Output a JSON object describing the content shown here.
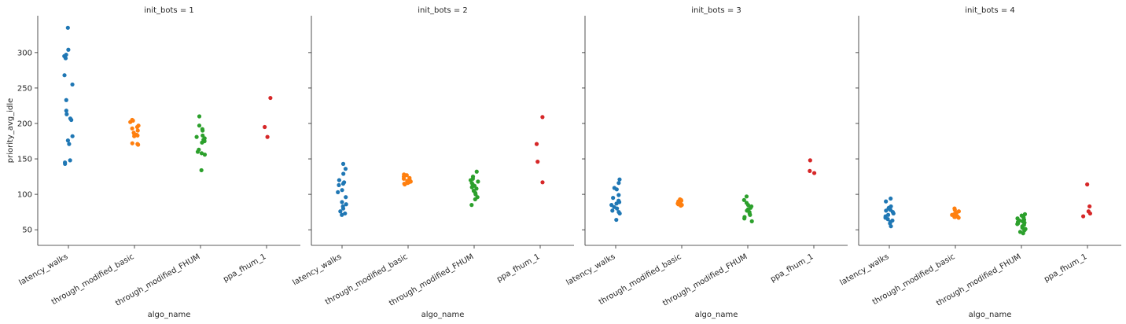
{
  "chart_data": {
    "type": "scatter",
    "subtype": "strip",
    "ylabel": "priority_avg_idle",
    "xlabel": "algo_name",
    "categories": [
      "latency_walks",
      "through_modified_basic",
      "through_modified_FHUM",
      "ppa_fhum_1"
    ],
    "yticks": [
      50,
      100,
      150,
      200,
      250,
      300
    ],
    "ylim": [
      28,
      352
    ],
    "sharey": true,
    "grid": false,
    "colors": [
      "#1f77b4",
      "#ff7f0e",
      "#2ca02c",
      "#d62728"
    ],
    "facets": [
      {
        "title": "init_bots = 1",
        "values": [
          [
            335,
            304,
            297,
            295,
            292,
            268,
            255,
            233,
            218,
            213,
            207,
            205,
            182,
            176,
            171,
            148,
            145,
            143
          ],
          [
            205,
            204,
            202,
            197,
            195,
            193,
            190,
            187,
            185,
            184,
            183,
            182,
            172,
            171,
            170
          ],
          [
            210,
            197,
            192,
            190,
            183,
            181,
            179,
            177,
            175,
            173,
            163,
            160,
            158,
            156,
            134
          ],
          [
            236,
            195,
            181
          ]
        ]
      },
      {
        "title": "init_bots = 2",
        "values": [
          [
            143,
            136,
            129,
            120,
            117,
            115,
            113,
            106,
            103,
            96,
            89,
            86,
            83,
            80,
            76,
            73,
            71
          ],
          [
            128,
            127,
            125,
            123,
            122,
            120,
            119,
            118,
            117,
            116,
            115,
            114
          ],
          [
            132,
            125,
            122,
            120,
            118,
            116,
            114,
            112,
            110,
            108,
            105,
            102,
            100,
            96,
            93,
            85
          ],
          [
            209,
            171,
            146,
            117
          ]
        ]
      },
      {
        "title": "init_bots = 3",
        "values": [
          [
            121,
            116,
            109,
            107,
            99,
            95,
            91,
            89,
            87,
            85,
            82,
            80,
            77,
            75,
            73,
            64
          ],
          [
            93,
            92,
            91,
            90,
            89,
            88,
            87,
            87,
            86,
            85,
            85,
            84
          ],
          [
            97,
            92,
            88,
            85,
            83,
            81,
            79,
            77,
            75,
            73,
            71,
            68,
            66,
            62
          ],
          [
            148,
            133,
            130
          ]
        ]
      },
      {
        "title": "init_bots = 4",
        "values": [
          [
            94,
            90,
            83,
            81,
            80,
            78,
            77,
            75,
            73,
            71,
            69,
            67,
            65,
            63,
            61,
            59,
            55
          ],
          [
            80,
            78,
            76,
            74,
            73,
            72,
            71,
            70,
            69,
            68,
            68,
            67
          ],
          [
            72,
            70,
            69,
            68,
            67,
            66,
            64,
            63,
            62,
            61,
            60,
            59,
            58,
            57,
            55,
            53,
            51,
            49,
            47,
            45
          ],
          [
            114,
            83,
            76,
            73,
            69
          ]
        ]
      }
    ]
  }
}
